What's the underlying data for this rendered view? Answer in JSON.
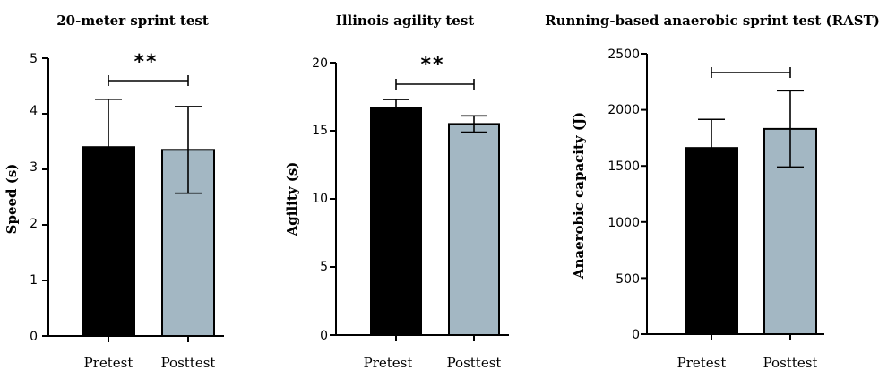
{
  "colors": {
    "pretest": "#000000",
    "posttest": "#a3b7c3",
    "axis": "#000000"
  },
  "chart_data": [
    {
      "type": "bar",
      "title": "20-meter sprint test",
      "ylabel": "Speed (s)",
      "categories": [
        "Pretest",
        "Posttest"
      ],
      "values": [
        3.4,
        3.35
      ],
      "errors": [
        0.86,
        0.78
      ],
      "ylim": [
        0,
        5
      ],
      "yticks": [
        "0",
        "1",
        "2",
        "3",
        "4",
        "5"
      ],
      "significance": "**",
      "grid": false
    },
    {
      "type": "bar",
      "title": "Illinois agility test",
      "ylabel": "Agility (s)",
      "categories": [
        "Pretest",
        "Posttest"
      ],
      "values": [
        16.7,
        15.5
      ],
      "errors": [
        0.6,
        0.6
      ],
      "ylim": [
        0,
        20
      ],
      "yticks": [
        "0",
        "5",
        "10",
        "15",
        "20"
      ],
      "significance": "**",
      "grid": false
    },
    {
      "type": "bar",
      "title": "Running-based anaerobic sprint test (RAST)",
      "ylabel": "Anaerobic capacity (J)",
      "categories": [
        "Pretest",
        "Posttest"
      ],
      "values": [
        1660,
        1830
      ],
      "errors": [
        255,
        340
      ],
      "ylim": [
        0,
        2500
      ],
      "yticks": [
        "0",
        "500",
        "1000",
        "1500",
        "2000",
        "2500"
      ],
      "significance": "",
      "grid": false
    }
  ]
}
